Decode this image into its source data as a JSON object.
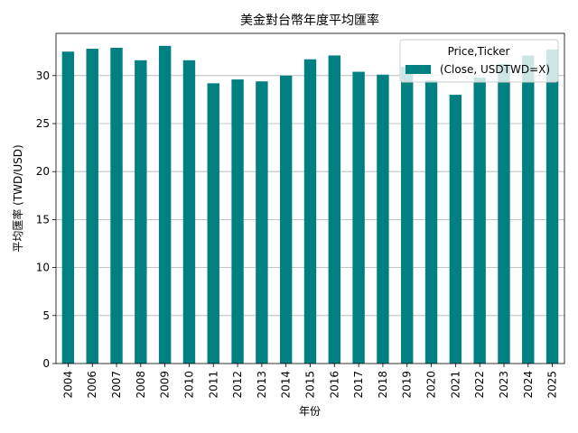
{
  "chart_data": {
    "type": "bar",
    "title": "美金對台幣年度平均匯率",
    "xlabel": "年份",
    "ylabel": "平均匯率 (TWD/USD)",
    "ylim": [
      0,
      34.4
    ],
    "yticks": [
      0,
      5,
      10,
      15,
      20,
      25,
      30
    ],
    "grid": "y",
    "legend": {
      "placement": "top-right",
      "title": "Price,Ticker",
      "entries": [
        "(Close, USDTWD=X)"
      ]
    },
    "categories": [
      "2004",
      "2006",
      "2007",
      "2008",
      "2009",
      "2010",
      "2011",
      "2012",
      "2013",
      "2014",
      "2015",
      "2016",
      "2017",
      "2018",
      "2019",
      "2020",
      "2021",
      "2022",
      "2023",
      "2024",
      "2025"
    ],
    "series": [
      {
        "name": "(Close, USDTWD=X)",
        "color": "#008080",
        "values": [
          32.5,
          32.8,
          32.9,
          31.6,
          33.1,
          31.6,
          29.2,
          29.6,
          29.4,
          30.0,
          31.7,
          32.1,
          30.4,
          30.1,
          30.9,
          29.5,
          28.0,
          29.8,
          31.2,
          32.1,
          32.7
        ]
      }
    ]
  }
}
